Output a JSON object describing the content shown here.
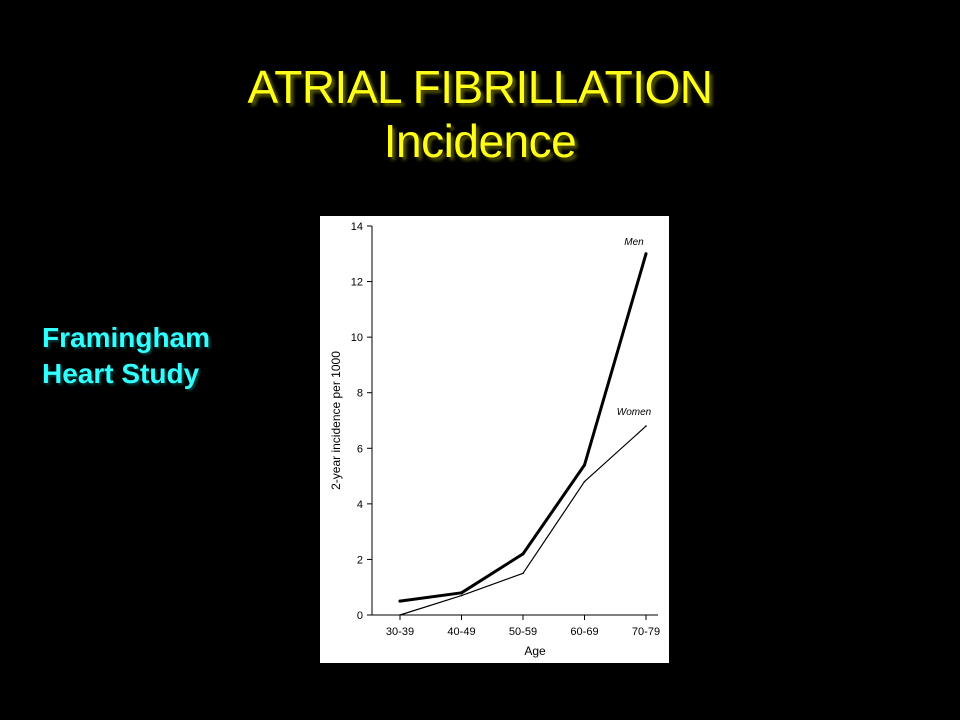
{
  "slide": {
    "title_line1": "ATRIAL FIBRILLATION",
    "title_line2": "Incidence",
    "side_label_line1": "Framingham",
    "side_label_line2": "Heart Study"
  },
  "colors": {
    "background": "#000000",
    "title": "#ffff1a",
    "side_label": "#33ffff",
    "chart_background": "#ffffff"
  },
  "chart_data": {
    "type": "line",
    "categories": [
      "30-39",
      "40-49",
      "50-59",
      "60-69",
      "70-79"
    ],
    "series": [
      {
        "name": "Men",
        "values": [
          0.5,
          0.8,
          2.2,
          5.4,
          13.0
        ],
        "line": "thick"
      },
      {
        "name": "Women",
        "values": [
          0.0,
          0.7,
          1.5,
          4.8,
          6.8
        ],
        "line": "thin"
      }
    ],
    "xlabel": "Age",
    "ylabel": "2-year incidence per 1000",
    "ylim": [
      0,
      14
    ],
    "yticks": [
      0,
      2,
      4,
      6,
      8,
      10,
      12,
      14
    ],
    "grid": false,
    "legend": "labels at line ends"
  }
}
